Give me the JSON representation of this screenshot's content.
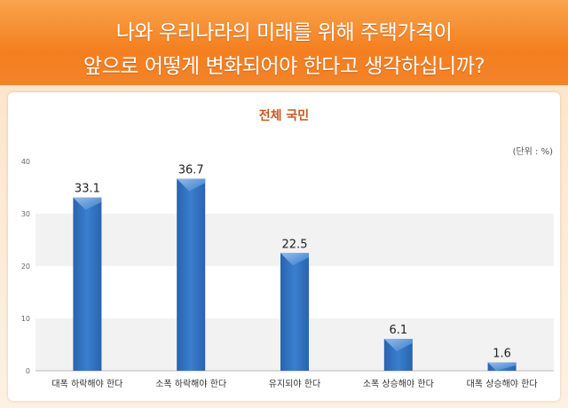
{
  "title_lines": [
    "나와 우리나라의 미래를 위해 주택가격이",
    "앞으로 어떻게 변화되어야 한다고 생각하십니까?"
  ],
  "colors": {
    "banner": "#f47f1f",
    "bar": "#2f6fbf",
    "subtitle": "#c9591e",
    "band": "#f2f2f2"
  },
  "chart_data": {
    "type": "bar",
    "title": "전체 국민",
    "unit_label": "(단위 : %)",
    "categories": [
      "대폭 하락해야 한다",
      "소폭 하락해야 한다",
      "유지되야 한다",
      "소폭 상승해야 한다",
      "대폭 상승해야 한다"
    ],
    "values": [
      33.1,
      36.7,
      22.5,
      6.1,
      1.6
    ],
    "data_labels": [
      "33.1",
      "36.7",
      "22.5",
      "6.1",
      "1.6"
    ],
    "yticks": [
      "0",
      "10",
      "20",
      "30",
      "40"
    ],
    "ylim": [
      0,
      40
    ],
    "xlabel": "",
    "ylabel": "",
    "grid": "alternating horizontal bands"
  }
}
